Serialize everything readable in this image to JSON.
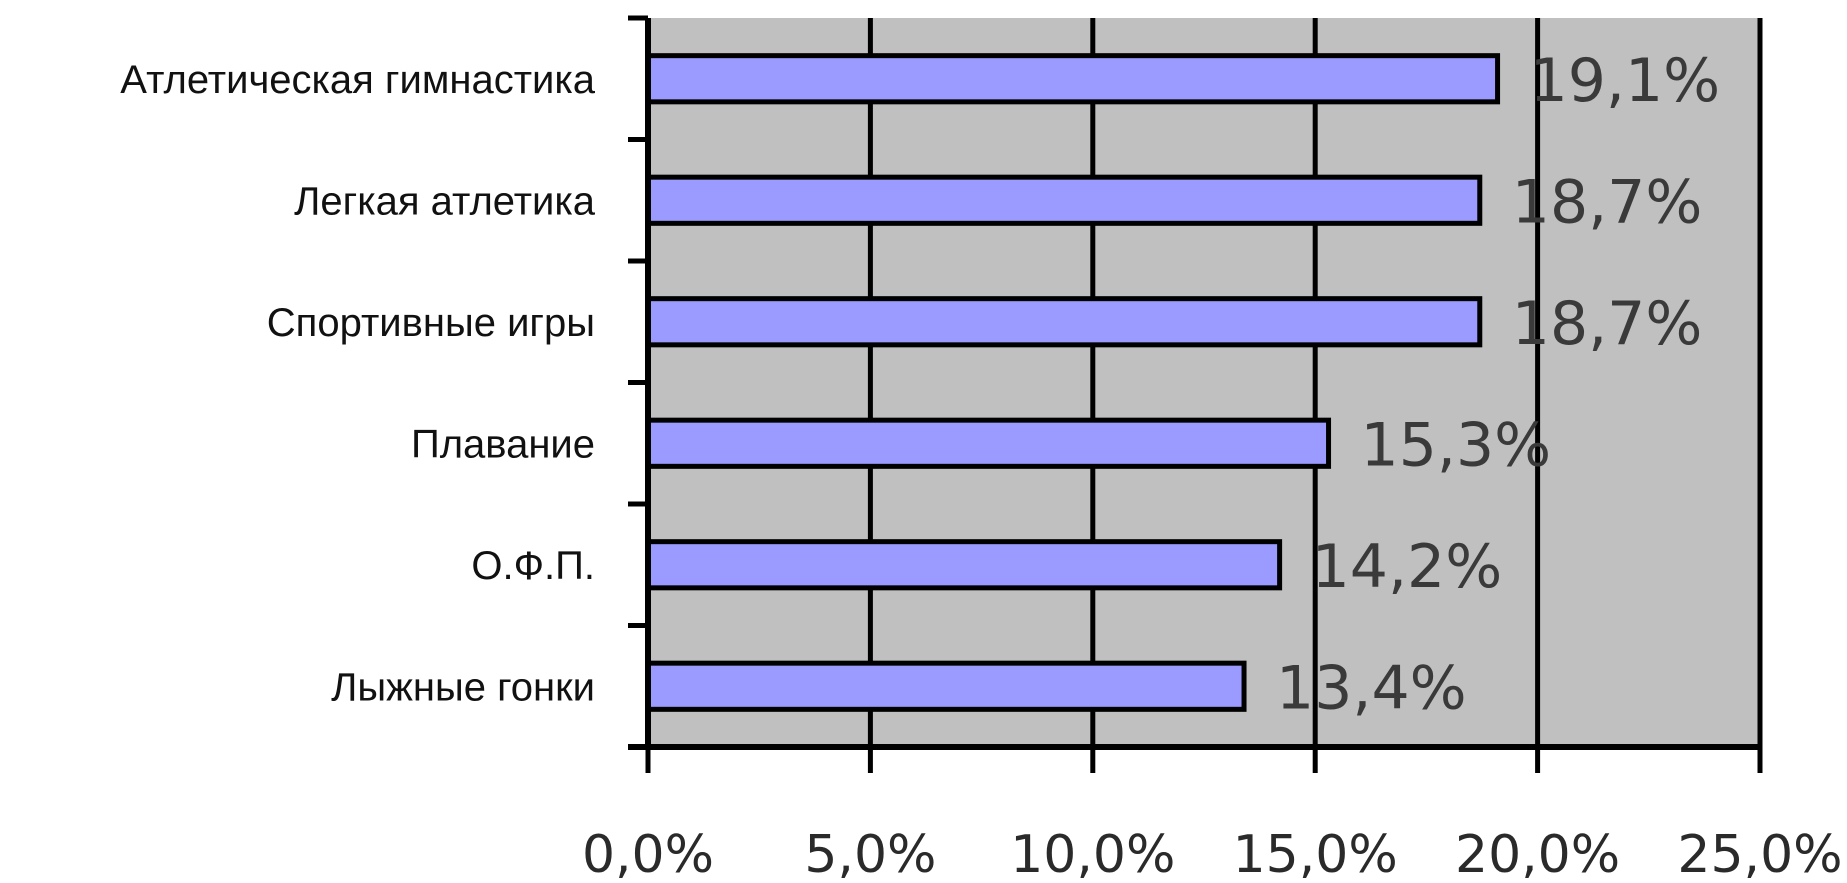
{
  "chart_data": {
    "type": "bar",
    "orientation": "horizontal",
    "categories": [
      "Атлетическая гимнастика",
      "Легкая атлетика",
      "Спортивные игры",
      "Плавание",
      "О.Ф.П.",
      "Лыжные гонки"
    ],
    "values": [
      19.1,
      18.7,
      18.7,
      15.3,
      14.2,
      13.4
    ],
    "value_labels": [
      "19,1%",
      "18,7%",
      "18,7%",
      "15,3%",
      "14,2%",
      "13,4%"
    ],
    "x_ticks": [
      "0,0%",
      "5,0%",
      "10,0%",
      "15,0%",
      "20,0%",
      "25,0%"
    ],
    "xlim": [
      0,
      25
    ],
    "grid": true,
    "colors": {
      "bar_fill": "#9a9aff",
      "bar_stroke": "#000000",
      "plot_background": "#c0c0c0",
      "gridline": "#000000"
    }
  }
}
